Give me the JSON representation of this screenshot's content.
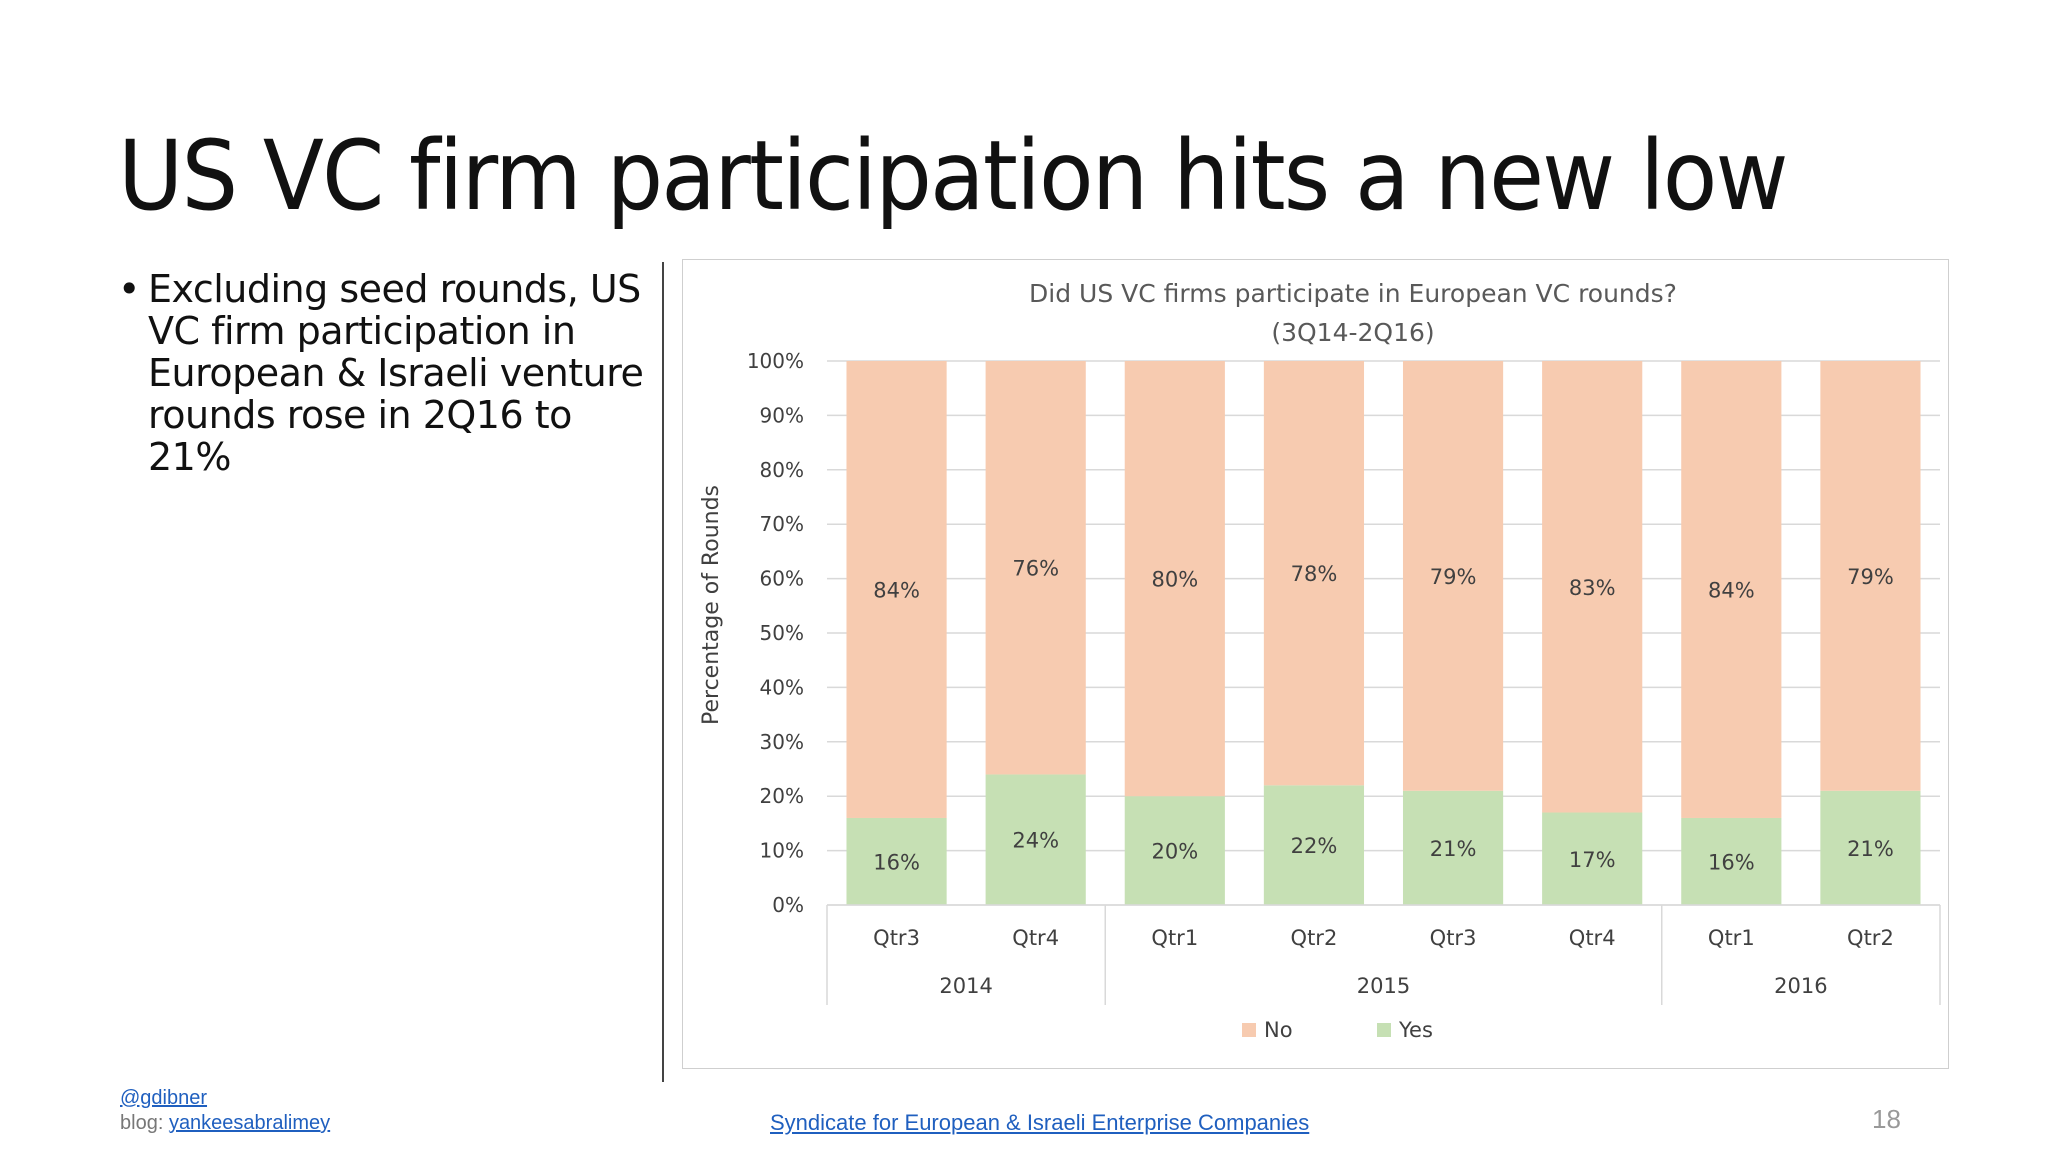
{
  "slide": {
    "title": "US VC firm participation hits a new low",
    "bullet": "Excluding seed rounds, US VC firm participation in European & Israeli venture rounds rose in 2Q16 to 21%",
    "bullet_marker": "•",
    "page_number": "18"
  },
  "footer": {
    "handle": "@gdibner",
    "blog_prefix": "blog: ",
    "blog_link": "yankeesabralimey",
    "source": "Syndicate for European & Israeli Enterprise Companies"
  },
  "colors": {
    "no": "#f7cbb0",
    "yes": "#c6e0b4",
    "grid": "#d9d9d9",
    "text": "#404040",
    "link": "#1f5fbf"
  },
  "chart_data": {
    "type": "bar",
    "stacked": true,
    "title_line1": "Did US VC firms participate in European VC rounds?",
    "title_line2": "(3Q14-2Q16)",
    "ylabel": "Percentage of Rounds",
    "xlabel": "",
    "ylim": [
      0,
      100
    ],
    "yticks": [
      "0%",
      "10%",
      "20%",
      "30%",
      "40%",
      "50%",
      "60%",
      "70%",
      "80%",
      "90%",
      "100%"
    ],
    "categories": [
      "Qtr3",
      "Qtr4",
      "Qtr1",
      "Qtr2",
      "Qtr3",
      "Qtr4",
      "Qtr1",
      "Qtr2"
    ],
    "groups": [
      {
        "label": "2014",
        "count": 2
      },
      {
        "label": "2015",
        "count": 4
      },
      {
        "label": "2016",
        "count": 2
      }
    ],
    "series": [
      {
        "name": "Yes",
        "values": [
          16,
          24,
          20,
          22,
          21,
          17,
          16,
          21
        ],
        "labels": [
          "16%",
          "24%",
          "20%",
          "22%",
          "21%",
          "17%",
          "16%",
          "21%"
        ]
      },
      {
        "name": "No",
        "values": [
          84,
          76,
          80,
          78,
          79,
          83,
          84,
          79
        ],
        "labels": [
          "84%",
          "76%",
          "80%",
          "78%",
          "79%",
          "83%",
          "84%",
          "79%"
        ]
      }
    ],
    "legend": [
      "No",
      "Yes"
    ],
    "legend_position": "bottom",
    "grid": true
  }
}
